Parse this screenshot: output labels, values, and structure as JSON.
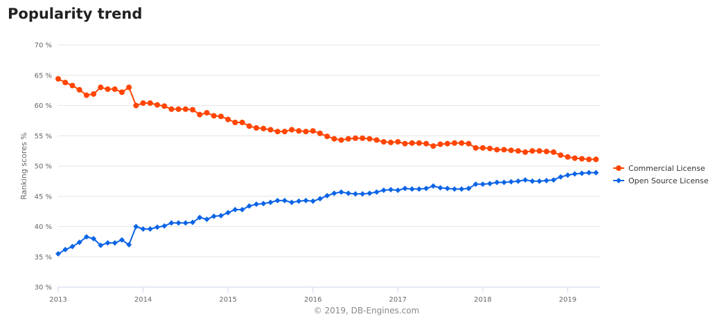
{
  "page": {
    "title": "Popularity trend"
  },
  "chart_data": {
    "type": "line",
    "ylabel": "Ranking scores %",
    "ylim": [
      30,
      70
    ],
    "yticks": [
      30,
      35,
      40,
      45,
      50,
      55,
      60,
      65,
      70
    ],
    "ytick_labels": [
      "30 %",
      "35 %",
      "40 %",
      "45 %",
      "50 %",
      "55 %",
      "60 %",
      "65 %",
      "70 %"
    ],
    "xlim": [
      2013,
      2019.38
    ],
    "xticks": [
      2013,
      2014,
      2015,
      2016,
      2017,
      2018,
      2019
    ],
    "xtick_labels": [
      "2013",
      "2014",
      "2015",
      "2016",
      "2017",
      "2018",
      "2019"
    ],
    "grid": true,
    "legend_position": "right",
    "credit": "© 2019, DB-Engines.com",
    "series": [
      {
        "name": "Commercial License",
        "color": "#ff4500",
        "marker": "circle",
        "start": "2013-01",
        "values": [
          64.4,
          63.8,
          63.3,
          62.6,
          61.7,
          61.9,
          63.0,
          62.7,
          62.7,
          62.2,
          63.0,
          60.0,
          60.4,
          60.4,
          60.1,
          59.9,
          59.4,
          59.4,
          59.4,
          59.3,
          58.5,
          58.8,
          58.3,
          58.2,
          57.7,
          57.2,
          57.2,
          56.6,
          56.3,
          56.2,
          56.0,
          55.7,
          55.7,
          56.0,
          55.8,
          55.7,
          55.8,
          55.4,
          54.9,
          54.5,
          54.3,
          54.5,
          54.6,
          54.6,
          54.5,
          54.3,
          54.0,
          53.9,
          54.0,
          53.7,
          53.8,
          53.8,
          53.7,
          53.3,
          53.6,
          53.7,
          53.8,
          53.8,
          53.7,
          53.0,
          53.0,
          52.9,
          52.7,
          52.7,
          52.6,
          52.5,
          52.3,
          52.5,
          52.5,
          52.4,
          52.3,
          51.8,
          51.5,
          51.3,
          51.2,
          51.1,
          51.1
        ]
      },
      {
        "name": "Open Source License",
        "color": "#0b64e6",
        "marker": "diamond",
        "start": "2013-01",
        "values": [
          35.5,
          36.2,
          36.7,
          37.4,
          38.3,
          38.0,
          36.9,
          37.3,
          37.3,
          37.8,
          37.0,
          40.0,
          39.6,
          39.6,
          39.9,
          40.1,
          40.6,
          40.6,
          40.6,
          40.7,
          41.5,
          41.2,
          41.7,
          41.8,
          42.3,
          42.8,
          42.8,
          43.4,
          43.7,
          43.8,
          44.0,
          44.3,
          44.3,
          44.0,
          44.2,
          44.3,
          44.2,
          44.6,
          45.1,
          45.5,
          45.7,
          45.5,
          45.4,
          45.4,
          45.5,
          45.7,
          46.0,
          46.1,
          46.0,
          46.3,
          46.2,
          46.2,
          46.3,
          46.7,
          46.4,
          46.3,
          46.2,
          46.2,
          46.3,
          47.0,
          47.0,
          47.1,
          47.3,
          47.3,
          47.4,
          47.5,
          47.7,
          47.5,
          47.5,
          47.6,
          47.7,
          48.2,
          48.5,
          48.7,
          48.8,
          48.9,
          48.9
        ]
      }
    ]
  }
}
